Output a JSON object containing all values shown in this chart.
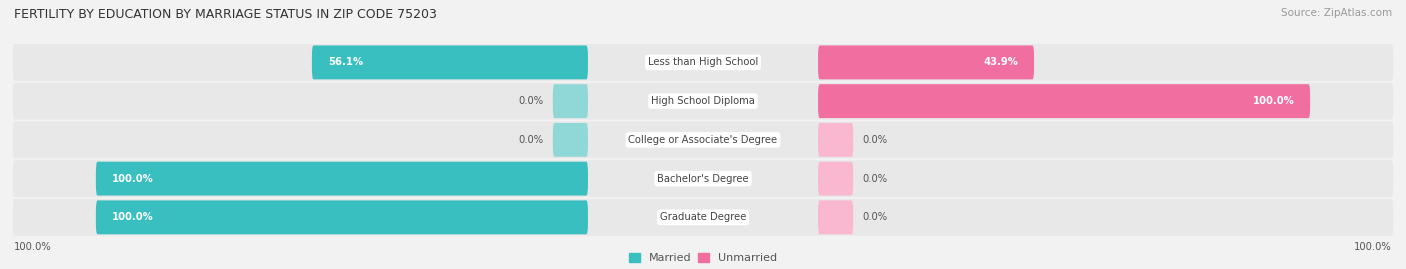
{
  "title": "FERTILITY BY EDUCATION BY MARRIAGE STATUS IN ZIP CODE 75203",
  "source": "Source: ZipAtlas.com",
  "categories": [
    "Less than High School",
    "High School Diploma",
    "College or Associate's Degree",
    "Bachelor's Degree",
    "Graduate Degree"
  ],
  "married": [
    56.1,
    0.0,
    0.0,
    100.0,
    100.0
  ],
  "unmarried": [
    43.9,
    100.0,
    0.0,
    0.0,
    0.0
  ],
  "married_color": "#39BFBF",
  "married_color_light": "#90D8D8",
  "unmarried_color": "#F06EA0",
  "unmarried_color_light": "#F9B8D0",
  "bg_color": "#f2f2f2",
  "row_bg": "#e8e8e8",
  "title_color": "#333333",
  "label_color": "#555555",
  "source_color": "#999999"
}
